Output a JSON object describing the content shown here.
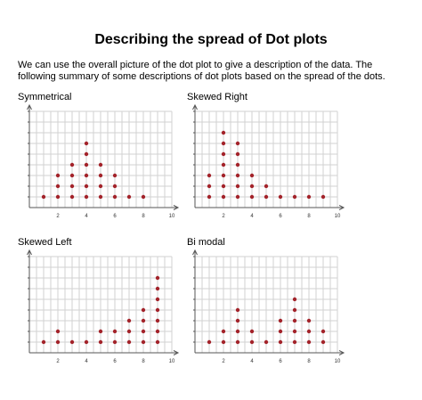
{
  "page": {
    "title": "Describing the spread of Dot plots",
    "intro": "We can use the overall picture of the dot plot to give a description of the data.  The following summary of some descriptions of dot plots based on the spread of the dots."
  },
  "colors": {
    "dot": "#a3232a",
    "grid": "#d2d2d2",
    "axis": "#555555"
  },
  "chart_data": [
    {
      "type": "scatter",
      "title": "Symmetrical",
      "xlim": [
        0,
        10
      ],
      "ylim": [
        0,
        9
      ],
      "x_ticks": [
        "2",
        "4",
        "6",
        "8",
        "10"
      ],
      "x": [
        1,
        2,
        3,
        4,
        5,
        6,
        7,
        8
      ],
      "counts": [
        1,
        3,
        4,
        6,
        4,
        3,
        1,
        1
      ]
    },
    {
      "type": "scatter",
      "title": "Skewed Right",
      "xlim": [
        0,
        10
      ],
      "ylim": [
        0,
        9
      ],
      "x_ticks": [
        "2",
        "4",
        "6",
        "8",
        "10"
      ],
      "x": [
        1,
        2,
        3,
        4,
        5,
        6,
        7,
        8,
        9
      ],
      "counts": [
        3,
        7,
        6,
        3,
        2,
        1,
        1,
        1,
        1
      ]
    },
    {
      "type": "scatter",
      "title": "Skewed Left",
      "xlim": [
        0,
        10
      ],
      "ylim": [
        0,
        9
      ],
      "x_ticks": [
        "2",
        "4",
        "6",
        "8",
        "10"
      ],
      "x": [
        1,
        2,
        3,
        4,
        5,
        6,
        7,
        8,
        9
      ],
      "counts": [
        1,
        2,
        1,
        1,
        2,
        2,
        3,
        4,
        7
      ]
    },
    {
      "type": "scatter",
      "title": "Bi modal",
      "xlim": [
        0,
        10
      ],
      "ylim": [
        0,
        9
      ],
      "x_ticks": [
        "2",
        "4",
        "6",
        "8",
        "10"
      ],
      "x": [
        1,
        2,
        3,
        4,
        5,
        6,
        7,
        8,
        9
      ],
      "counts": [
        1,
        2,
        4,
        2,
        1,
        3,
        5,
        3,
        2
      ]
    }
  ]
}
